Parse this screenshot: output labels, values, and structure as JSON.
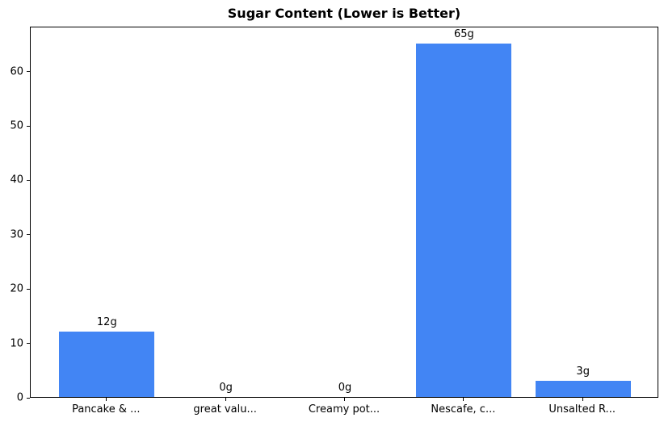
{
  "chart_data": {
    "type": "bar",
    "title": "Sugar Content (Lower is Better)",
    "categories": [
      "Pancake & ...",
      "great valu...",
      "Creamy pot...",
      "Nescafe, c...",
      "Unsalted R..."
    ],
    "values": [
      12,
      0,
      0,
      65,
      3
    ],
    "bar_labels": [
      "12g",
      "0g",
      "0g",
      "65g",
      "3g"
    ],
    "value_unit": "g",
    "xlabel": "",
    "ylabel": "",
    "ylim": [
      0,
      68.25
    ],
    "yticks": [
      0,
      10,
      20,
      30,
      40,
      50,
      60
    ],
    "grid": false,
    "legend": null,
    "bar_color": "#4285f4",
    "axis_color": "#000000",
    "text_color": "#000000",
    "background_color": "#ffffff"
  }
}
